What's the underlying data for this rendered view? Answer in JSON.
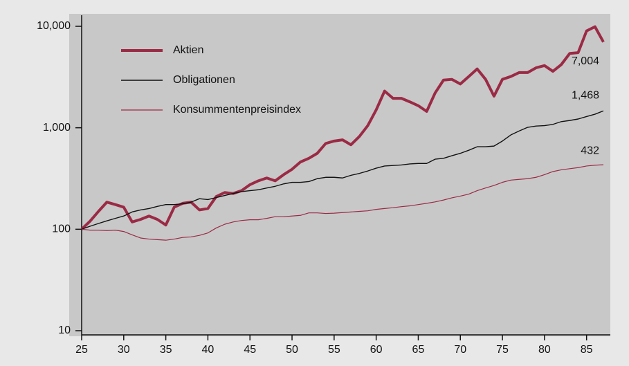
{
  "chart_data": {
    "type": "line",
    "log_y": true,
    "x": [
      25,
      26,
      27,
      28,
      29,
      30,
      31,
      32,
      33,
      34,
      35,
      36,
      37,
      38,
      39,
      40,
      41,
      42,
      43,
      44,
      45,
      46,
      47,
      48,
      49,
      50,
      51,
      52,
      53,
      54,
      55,
      56,
      57,
      58,
      59,
      60,
      61,
      62,
      63,
      64,
      65,
      66,
      67,
      68,
      69,
      70,
      71,
      72,
      73,
      74,
      75,
      76,
      77,
      78,
      79,
      80,
      81,
      82,
      83,
      84,
      85,
      86,
      87
    ],
    "xlim": [
      25,
      87
    ],
    "xticks": [
      25,
      30,
      35,
      40,
      45,
      50,
      55,
      60,
      65,
      70,
      75,
      80,
      85
    ],
    "ylim": [
      10,
      10000
    ],
    "yticks": [
      10,
      100,
      {
        "value": 1000,
        "label": "1,000"
      },
      {
        "value": 10000,
        "label": "10,000"
      }
    ],
    "legend": "upper-left",
    "series": [
      {
        "name": "Aktien",
        "color": "#9b2a45",
        "line_width": 4,
        "values": [
          100,
          120,
          150,
          185,
          175,
          165,
          118,
          125,
          135,
          125,
          110,
          165,
          180,
          185,
          155,
          160,
          210,
          230,
          225,
          240,
          275,
          300,
          320,
          300,
          345,
          390,
          460,
          500,
          560,
          700,
          740,
          760,
          680,
          820,
          1050,
          1500,
          2300,
          1950,
          1950,
          1800,
          1650,
          1450,
          2200,
          2950,
          3000,
          2700,
          3200,
          3800,
          3000,
          2050,
          3000,
          3200,
          3500,
          3500,
          3900,
          4100,
          3600,
          4200,
          5400,
          5500,
          9000,
          9900,
          7004
        ]
      },
      {
        "name": "Obligationen",
        "color": "#111111",
        "line_width": 1.4,
        "values": [
          100,
          107,
          114,
          121,
          128,
          135,
          148,
          155,
          160,
          168,
          175,
          175,
          178,
          185,
          200,
          196,
          205,
          215,
          225,
          235,
          240,
          245,
          255,
          265,
          280,
          290,
          290,
          295,
          315,
          325,
          325,
          320,
          340,
          355,
          375,
          400,
          420,
          425,
          430,
          440,
          445,
          445,
          490,
          500,
          530,
          560,
          600,
          650,
          650,
          660,
          740,
          850,
          930,
          1010,
          1040,
          1050,
          1080,
          1150,
          1180,
          1220,
          1290,
          1360,
          1468
        ]
      },
      {
        "name": "Konsummentenpreisindex",
        "color": "#9b2a45",
        "line_width": 1.2,
        "values": [
          100,
          98,
          98,
          97,
          98,
          95,
          88,
          82,
          80,
          79,
          78,
          80,
          83,
          84,
          87,
          92,
          103,
          112,
          118,
          122,
          124,
          124,
          128,
          133,
          133,
          135,
          137,
          145,
          145,
          143,
          144,
          146,
          148,
          150,
          152,
          157,
          160,
          163,
          167,
          170,
          175,
          180,
          186,
          194,
          204,
          212,
          222,
          240,
          255,
          270,
          290,
          305,
          310,
          315,
          325,
          345,
          370,
          385,
          395,
          405,
          420,
          428,
          432
        ]
      }
    ],
    "annotations": [
      {
        "series": 0,
        "x": 87,
        "value": 7004,
        "label": "7,004"
      },
      {
        "series": 1,
        "x": 87,
        "value": 1468,
        "label": "1,468"
      },
      {
        "series": 2,
        "x": 87,
        "value": 432,
        "label": "432"
      }
    ]
  }
}
